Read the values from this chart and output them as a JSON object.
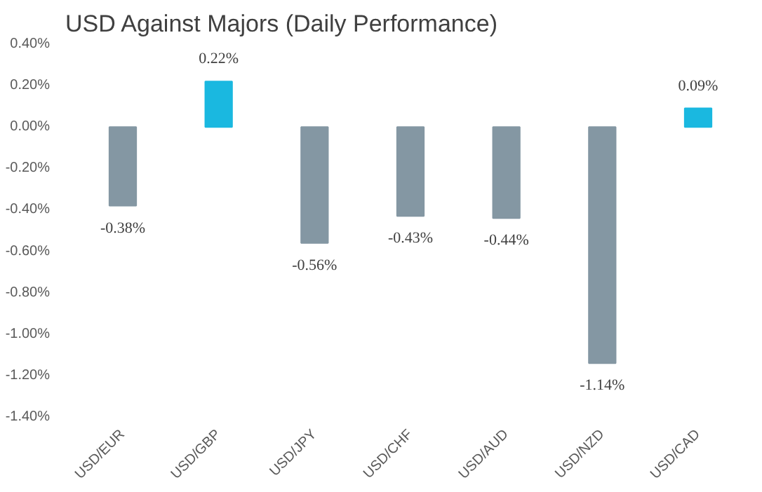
{
  "chart_data": {
    "type": "bar",
    "title": "USD Against Majors (Daily Performance)",
    "categories": [
      "USD/EUR",
      "USD/GBP",
      "USD/JPY",
      "USD/CHF",
      "USD/AUD",
      "USD/NZD",
      "USD/CAD"
    ],
    "values": [
      -0.38,
      0.22,
      -0.56,
      -0.43,
      -0.44,
      -1.14,
      0.09
    ],
    "colors": [
      "#8497a3",
      "#1ab8e0",
      "#8497a3",
      "#8497a3",
      "#8497a3",
      "#8497a3",
      "#1ab8e0"
    ],
    "value_labels": [
      "-0.38%",
      "0.22%",
      "-0.56%",
      "-0.43%",
      "-0.44%",
      "-1.14%",
      "0.09%"
    ],
    "ylim": [
      -1.4,
      0.4
    ],
    "yticks": [
      {
        "value": -1.4,
        "label": "-1.40%"
      },
      {
        "value": -1.2,
        "label": "-1.20%"
      },
      {
        "value": -1.0,
        "label": "-1.00%"
      },
      {
        "value": -0.8,
        "label": "-0.80%"
      },
      {
        "value": -0.6,
        "label": "-0.60%"
      },
      {
        "value": -0.4,
        "label": "-0.40%"
      },
      {
        "value": -0.2,
        "label": "-0.20%"
      },
      {
        "value": 0,
        "label": "0.00%"
      },
      {
        "value": 0.2,
        "label": "0.20%"
      },
      {
        "value": 0.4,
        "label": "0.40%"
      }
    ],
    "grid": false
  }
}
